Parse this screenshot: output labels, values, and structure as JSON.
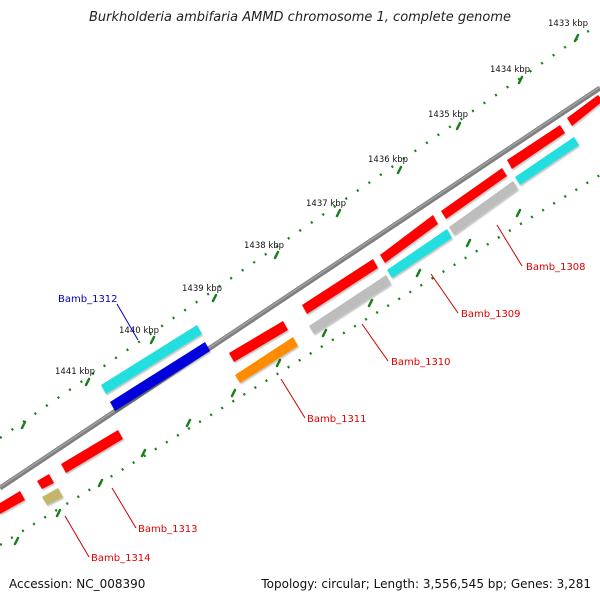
{
  "title": "Burkholderia ambifaria AMMD chromosome 1, complete genome",
  "footer": {
    "accession": "Accession: NC_008390",
    "summary": "Topology: circular; Length: 3,556,545 bp; Genes: 3,281"
  },
  "ticks": [
    "1433 kbp",
    "1434 kbp",
    "1435 kbp",
    "1436 kbp",
    "1437 kbp",
    "1438 kbp",
    "1439 kbp",
    "1440 kbp",
    "1441 kbp"
  ],
  "genes": [
    {
      "label": "Bamb_1308",
      "color": "#e00000"
    },
    {
      "label": "Bamb_1309",
      "color": "#e00000"
    },
    {
      "label": "Bamb_1310",
      "color": "#e00000"
    },
    {
      "label": "Bamb_1311",
      "color": "#e00000"
    },
    {
      "label": "Bamb_1312",
      "color": "#0000c0"
    },
    {
      "label": "Bamb_1313",
      "color": "#e00000"
    },
    {
      "label": "Bamb_1314",
      "color": "#e00000"
    }
  ],
  "colors": {
    "backbone": "#777777",
    "tick": "#1a7f1a",
    "red": "#ff0000",
    "cyan": "#22dede",
    "grey": "#bdbdbd",
    "blue": "#0000dd",
    "orange": "#ff8c00",
    "olive": "#c2b66a"
  }
}
